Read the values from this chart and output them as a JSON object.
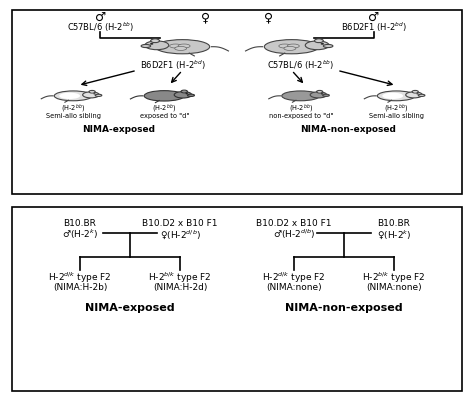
{
  "panel_a": {
    "left_male_symbol": "♂",
    "left_male_label": "C57BL/6 (H-2$^{bb}$)",
    "right_male_symbol": "♂",
    "right_male_label": "B6D2F1 (H-2$^{bd}$)",
    "left_female_symbol": "♀",
    "right_female_symbol": "♀",
    "offspring_left": "B6D2F1 (H-2$^{bd}$)",
    "offspring_right": "C57BL/6 (H-2$^{bb}$)",
    "pup1_h": "(H-2$^{bb}$)",
    "pup1_d": "Semi-allo sibling",
    "pup2_h": "(H-2$^{bb}$)",
    "pup2_d": "exposed to \"d\"",
    "pup3_h": "(H-2$^{bb}$)",
    "pup3_d": "non-exposed to \"d\"",
    "pup4_h": "(H-2$^{bb}$)",
    "pup4_d": "Semi-allo sibling",
    "nima_exposed": "NIMA-exposed",
    "nima_non_exposed": "NIMA-non-exposed"
  },
  "panel_b": {
    "ll_strain": "B10.BR",
    "ll_sex": "♂(H-2$^{k}$)",
    "lf_strain": "B10.D2 x B10 F1",
    "lf_sex": "♀(H-2$^{d/b}$)",
    "rl_strain": "B10.D2 x B10 F1",
    "rl_sex": "♂(H-2$^{d/b}$)",
    "rr_strain": "B10.BR",
    "rr_sex": "♀(H-2$^{k}$)",
    "ll_off_line1": "H-2$^{d/k}$ type F2",
    "ll_off_line2": "(NIMA:H-2b)",
    "lr_off_line1": "H-2$^{b/k}$ type F2",
    "lr_off_line2": "(NIMA:H-2d)",
    "rl_off_line1": "H-2$^{d/k}$ type F2",
    "rl_off_line2": "(NIMA:none)",
    "rr_off_line1": "H-2$^{b/k}$ type F2",
    "rr_off_line2": "(NIMA:none)",
    "left_label": "NIMA-exposed",
    "right_label": "NIMA-non-exposed"
  }
}
